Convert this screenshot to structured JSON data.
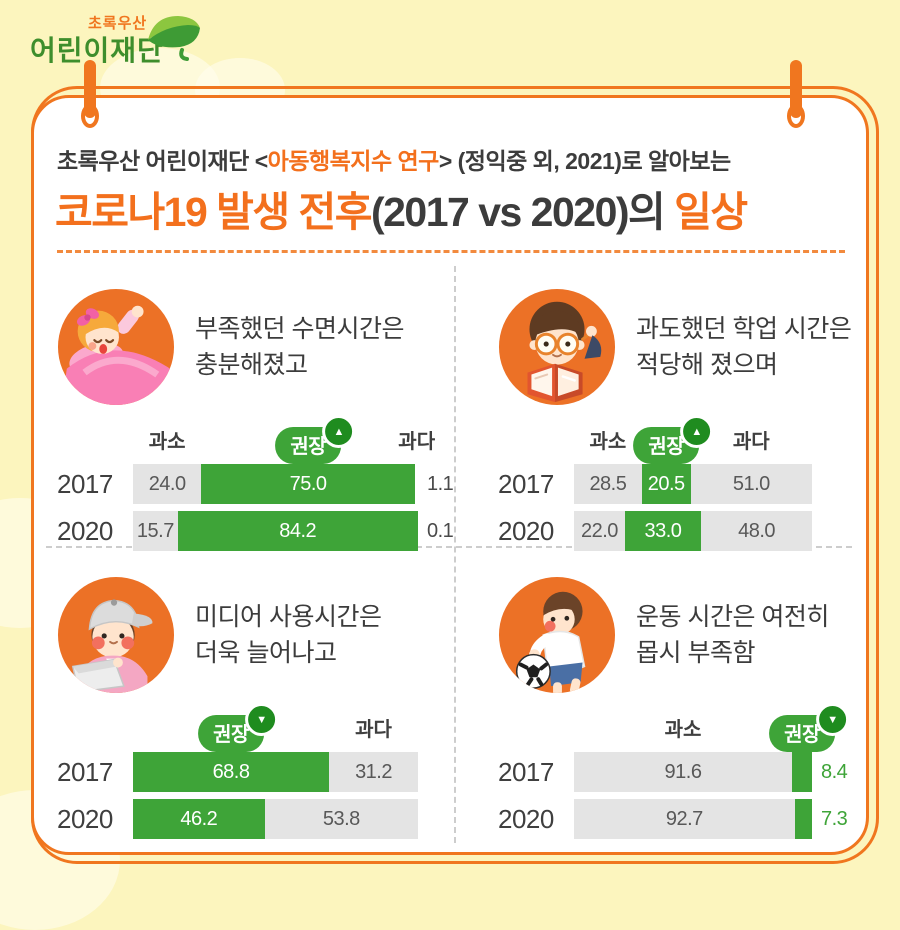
{
  "logo": {
    "top": "초록우산",
    "bottom": "어린이재단",
    "icon": "green-leaf-umbrella-icon"
  },
  "header": {
    "intro_prefix": "초록우산 어린이재단 <",
    "intro_highlight": "아동행복지수 연구",
    "intro_suffix": "> (정익중 외, 2021)로 알아보는",
    "title_orange_1": "코로나19 발생 전후",
    "title_dark": "(2017 vs 2020)의 ",
    "title_orange_2": "일상"
  },
  "colors": {
    "background": "#FCF5BE",
    "accent_orange": "#F0761F",
    "title_orange": "#F3701D",
    "illustration_circle_orange": "#EC7126",
    "bar_green": "#3EA438",
    "badge_dot_green": "#1F8C1F",
    "bar_gray": "#E4E4E4",
    "text_dark": "#3C3C3C",
    "logo_green": "#3E8E2C"
  },
  "chart_data": [
    {
      "type": "bar",
      "topic": "sleep-time",
      "caption_lines": [
        "부족했던 수면시간은",
        "충분해졌고"
      ],
      "categories": [
        "2017",
        "2020"
      ],
      "stacked": true,
      "unit": "percent",
      "xlim": [
        0,
        100
      ],
      "series": [
        {
          "name": "과소",
          "style": "gray",
          "badge": false,
          "values": [
            24.0,
            15.7
          ]
        },
        {
          "name": "권장",
          "style": "green",
          "badge": true,
          "arrow": "▲",
          "values": [
            75.0,
            84.2
          ]
        },
        {
          "name": "과다",
          "style": "outside-dark",
          "badge": false,
          "values": [
            1.1,
            0.1
          ]
        }
      ]
    },
    {
      "type": "bar",
      "topic": "study-time",
      "caption_lines": [
        "과도했던 학업 시간은",
        "적당해 졌으며"
      ],
      "categories": [
        "2017",
        "2020"
      ],
      "stacked": true,
      "unit": "percent",
      "xlim": [
        0,
        100
      ],
      "series": [
        {
          "name": "과소",
          "style": "gray",
          "badge": false,
          "values": [
            28.5,
            22.0
          ]
        },
        {
          "name": "권장",
          "style": "green",
          "badge": true,
          "arrow": "▲",
          "values": [
            20.5,
            33.0
          ]
        },
        {
          "name": "과다",
          "style": "gray",
          "badge": false,
          "values": [
            51.0,
            48.0
          ]
        }
      ]
    },
    {
      "type": "bar",
      "topic": "media-time",
      "caption_lines": [
        "미디어 사용시간은",
        "더욱 늘어나고"
      ],
      "categories": [
        "2017",
        "2020"
      ],
      "stacked": true,
      "unit": "percent",
      "xlim": [
        0,
        100
      ],
      "series": [
        {
          "name": "권장",
          "style": "green",
          "badge": true,
          "arrow": "▼",
          "values": [
            68.8,
            46.2
          ]
        },
        {
          "name": "과다",
          "style": "gray",
          "badge": false,
          "values": [
            31.2,
            53.8
          ]
        }
      ]
    },
    {
      "type": "bar",
      "topic": "exercise-time",
      "caption_lines": [
        "운동 시간은 여전히",
        "몹시 부족함"
      ],
      "categories": [
        "2017",
        "2020"
      ],
      "stacked": true,
      "unit": "percent",
      "xlim": [
        0,
        100
      ],
      "series": [
        {
          "name": "과소",
          "style": "gray",
          "badge": false,
          "values": [
            91.6,
            92.7
          ]
        },
        {
          "name": "권장",
          "style": "outside-green",
          "badge": true,
          "arrow": "▼",
          "values": [
            8.4,
            7.3
          ]
        }
      ]
    }
  ]
}
